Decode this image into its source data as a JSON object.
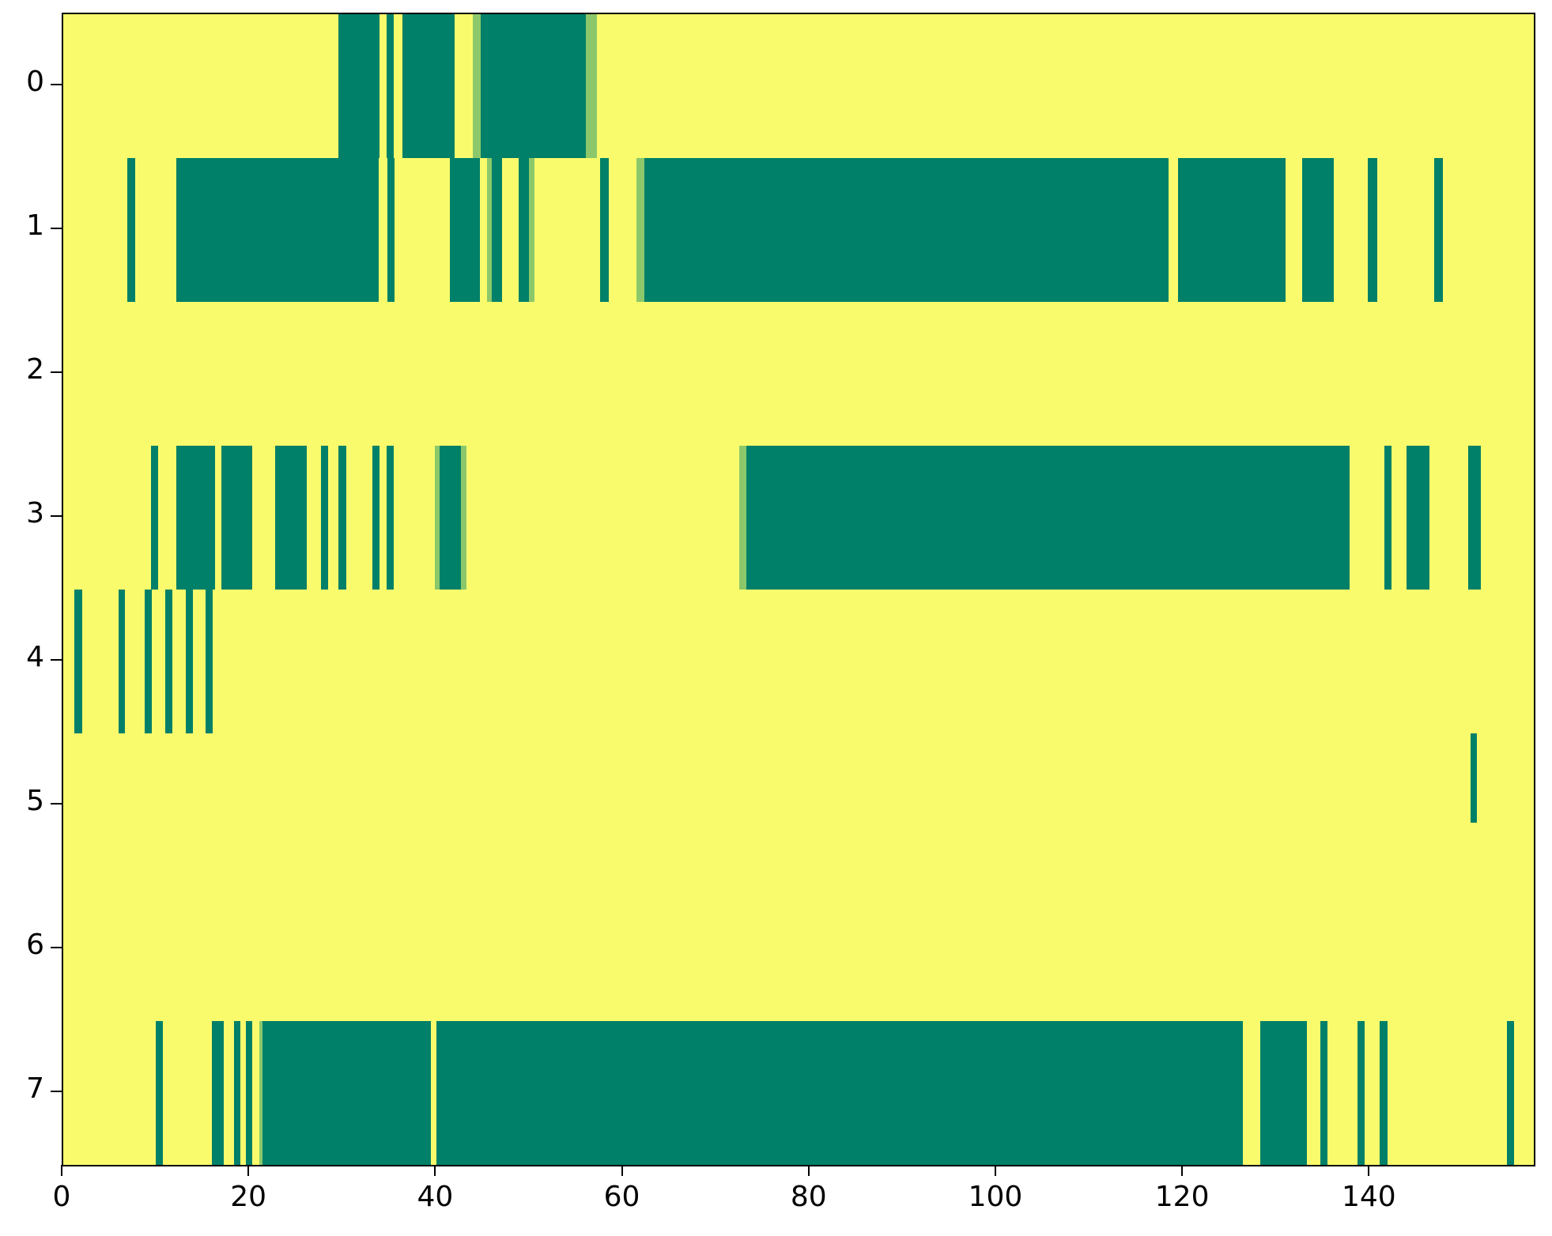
{
  "chart_data": {
    "type": "heatmap",
    "title": "",
    "xlabel": "",
    "ylabel": "",
    "x_range": [
      0,
      157.5
    ],
    "x_ticks": [
      0,
      20,
      40,
      60,
      80,
      100,
      120,
      140
    ],
    "y_tick_labels": [
      "0",
      "1",
      "2",
      "3",
      "4",
      "5",
      "6",
      "7"
    ],
    "grid": false,
    "legend": "none",
    "colors": {
      "background": "#f9fb6d",
      "high": "#008068",
      "mid": "#8cc86b",
      "axis": "#000000"
    },
    "value_legend": "segments list intervals along x per row; v=1 dark teal, v=0.5 light green, background yellow = 0",
    "rows": [
      {
        "label": "0",
        "segments": [
          {
            "x0": 29.5,
            "x1": 33.9,
            "v": 1
          },
          {
            "x0": 34.6,
            "x1": 35.4,
            "v": 1
          },
          {
            "x0": 36.3,
            "x1": 41.9,
            "v": 1
          },
          {
            "x0": 43.9,
            "x1": 44.7,
            "v": 0.5
          },
          {
            "x0": 44.7,
            "x1": 56.0,
            "v": 1
          },
          {
            "x0": 56.0,
            "x1": 57.2,
            "v": 0.5
          }
        ]
      },
      {
        "label": "1",
        "segments": [
          {
            "x0": 6.9,
            "x1": 7.7,
            "v": 1
          },
          {
            "x0": 12.1,
            "x1": 33.8,
            "v": 1
          },
          {
            "x0": 34.7,
            "x1": 35.5,
            "v": 1
          },
          {
            "x0": 41.4,
            "x1": 44.6,
            "v": 1
          },
          {
            "x0": 45.4,
            "x1": 45.9,
            "v": 0.5
          },
          {
            "x0": 45.9,
            "x1": 47.0,
            "v": 1
          },
          {
            "x0": 48.8,
            "x1": 49.9,
            "v": 1
          },
          {
            "x0": 49.9,
            "x1": 50.5,
            "v": 0.5
          },
          {
            "x0": 57.5,
            "x1": 58.4,
            "v": 1
          },
          {
            "x0": 61.4,
            "x1": 62.2,
            "v": 0.5
          },
          {
            "x0": 62.2,
            "x1": 118.4,
            "v": 1
          },
          {
            "x0": 119.4,
            "x1": 130.9,
            "v": 1
          },
          {
            "x0": 132.7,
            "x1": 136.1,
            "v": 1
          },
          {
            "x0": 139.7,
            "x1": 140.7,
            "v": 1
          },
          {
            "x0": 146.8,
            "x1": 147.8,
            "v": 1
          }
        ]
      },
      {
        "label": "2",
        "segments": []
      },
      {
        "label": "3",
        "segments": [
          {
            "x0": 9.4,
            "x1": 10.2,
            "v": 1
          },
          {
            "x0": 12.1,
            "x1": 16.3,
            "v": 1
          },
          {
            "x0": 16.9,
            "x1": 20.2,
            "v": 1
          },
          {
            "x0": 22.7,
            "x1": 26.1,
            "v": 1
          },
          {
            "x0": 27.6,
            "x1": 28.4,
            "v": 1
          },
          {
            "x0": 29.5,
            "x1": 30.3,
            "v": 1
          },
          {
            "x0": 33.1,
            "x1": 33.9,
            "v": 1
          },
          {
            "x0": 34.6,
            "x1": 35.4,
            "v": 1
          },
          {
            "x0": 39.8,
            "x1": 40.3,
            "v": 0.5
          },
          {
            "x0": 40.3,
            "x1": 42.6,
            "v": 1
          },
          {
            "x0": 42.6,
            "x1": 43.2,
            "v": 0.5
          },
          {
            "x0": 72.4,
            "x1": 73.2,
            "v": 0.5
          },
          {
            "x0": 73.2,
            "x1": 137.8,
            "v": 1
          },
          {
            "x0": 141.5,
            "x1": 142.3,
            "v": 1
          },
          {
            "x0": 143.9,
            "x1": 146.3,
            "v": 1
          },
          {
            "x0": 150.5,
            "x1": 151.8,
            "v": 1
          }
        ]
      },
      {
        "label": "4",
        "segments": [
          {
            "x0": 1.2,
            "x1": 2.0,
            "v": 1
          },
          {
            "x0": 5.9,
            "x1": 6.6,
            "v": 1
          },
          {
            "x0": 8.7,
            "x1": 9.5,
            "v": 1
          },
          {
            "x0": 10.9,
            "x1": 11.7,
            "v": 1
          },
          {
            "x0": 13.1,
            "x1": 13.9,
            "v": 1
          },
          {
            "x0": 15.2,
            "x1": 16.0,
            "v": 1
          }
        ]
      },
      {
        "label": "5",
        "segments": [
          {
            "x0": 150.7,
            "x1": 151.4,
            "v": 1,
            "y0": 0.0,
            "y1": 0.62
          }
        ]
      },
      {
        "label": "6",
        "segments": []
      },
      {
        "label": "7",
        "segments": [
          {
            "x0": 9.9,
            "x1": 10.7,
            "v": 1
          },
          {
            "x0": 15.9,
            "x1": 17.2,
            "v": 1
          },
          {
            "x0": 18.3,
            "x1": 19.0,
            "v": 1
          },
          {
            "x0": 19.6,
            "x1": 20.2,
            "v": 1
          },
          {
            "x0": 21.0,
            "x1": 21.3,
            "v": 0.5
          },
          {
            "x0": 21.3,
            "x1": 39.4,
            "v": 1
          },
          {
            "x0": 40.0,
            "x1": 126.3,
            "v": 1
          },
          {
            "x0": 128.2,
            "x1": 133.2,
            "v": 1
          },
          {
            "x0": 134.6,
            "x1": 135.4,
            "v": 1
          },
          {
            "x0": 138.6,
            "x1": 139.4,
            "v": 1
          },
          {
            "x0": 141.0,
            "x1": 141.8,
            "v": 1
          },
          {
            "x0": 154.6,
            "x1": 155.4,
            "v": 1
          }
        ]
      }
    ]
  }
}
